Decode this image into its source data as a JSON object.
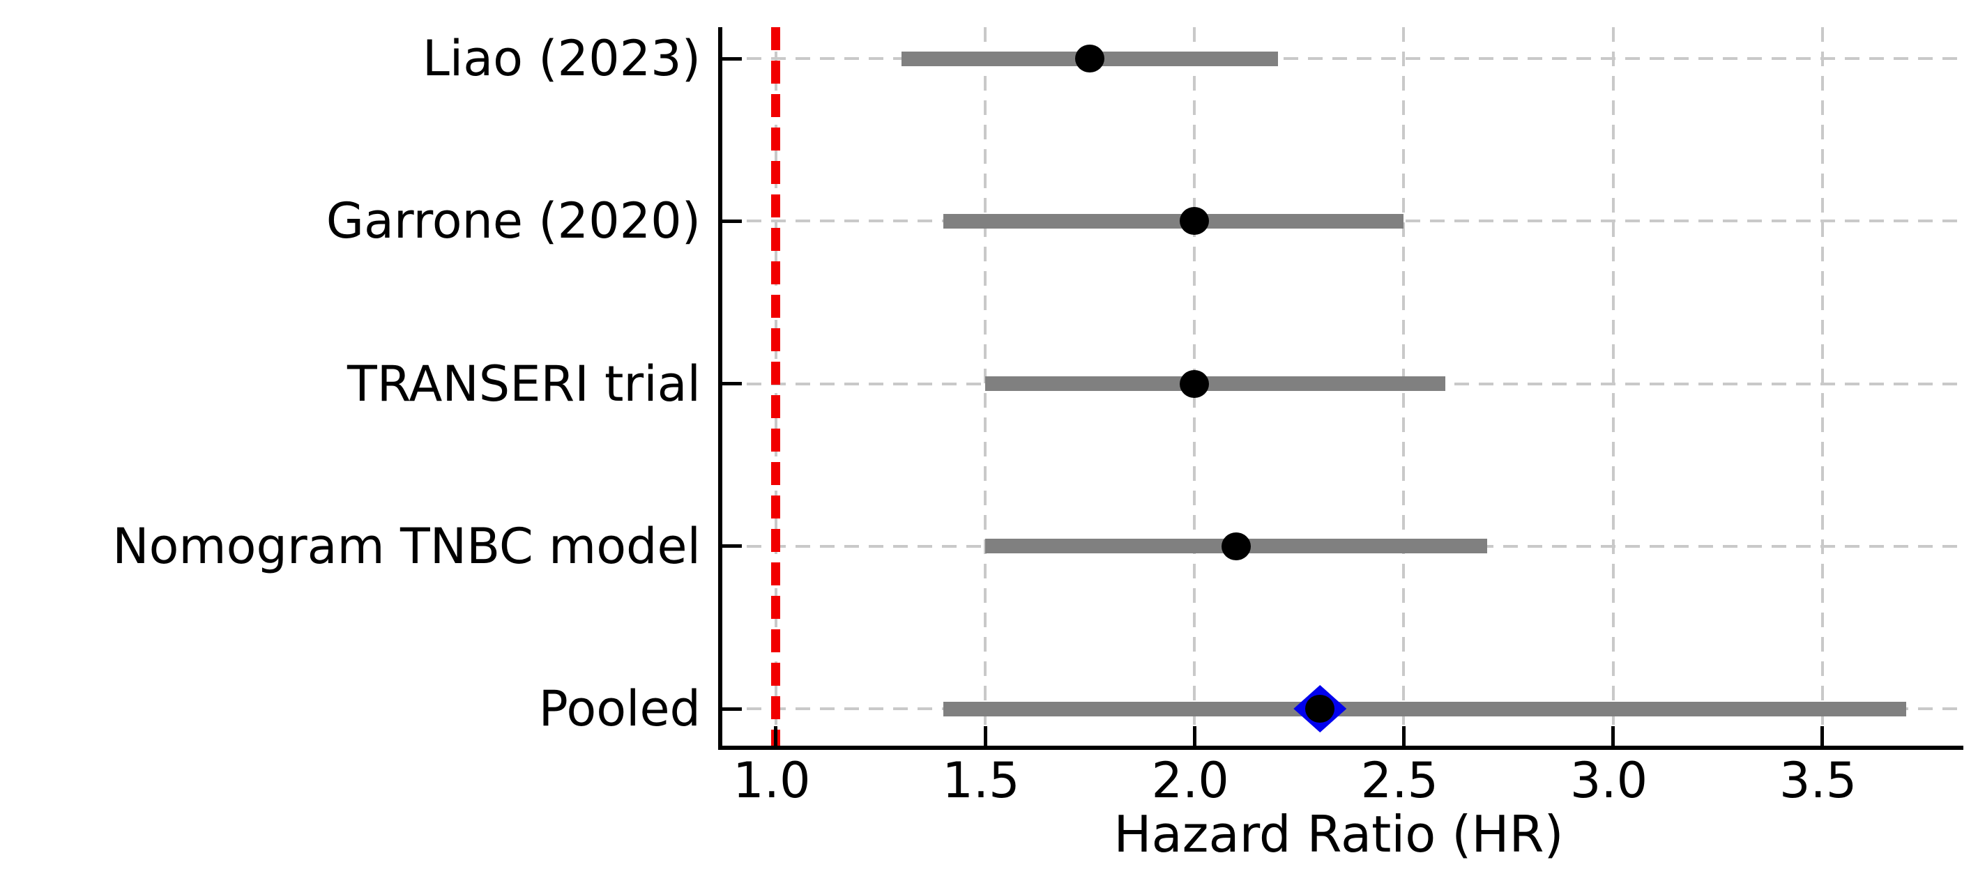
{
  "chart_data": {
    "type": "forest",
    "title": "",
    "xlabel": "Hazard Ratio (HR)",
    "x_ticks": [
      1.0,
      1.5,
      2.0,
      2.5,
      3.0,
      3.5
    ],
    "xlim": [
      0.872,
      3.837
    ],
    "grid": true,
    "reference_line": {
      "x": 1.0,
      "style": "dashed"
    },
    "studies": [
      {
        "label": "Liao (2023)",
        "hr": 1.75,
        "ci_low": 1.3,
        "ci_high": 2.2,
        "marker": "circle"
      },
      {
        "label": "Garrone (2020)",
        "hr": 2.0,
        "ci_low": 1.4,
        "ci_high": 2.5,
        "marker": "circle"
      },
      {
        "label": "TRANSERI trial",
        "hr": 2.0,
        "ci_low": 1.5,
        "ci_high": 2.6,
        "marker": "circle"
      },
      {
        "label": "Nomogram TNBC model",
        "hr": 2.1,
        "ci_low": 1.5,
        "ci_high": 2.7,
        "marker": "circle"
      },
      {
        "label": "Pooled",
        "hr": 2.3,
        "ci_low": 1.4,
        "ci_high": 3.7,
        "marker": "diamond"
      }
    ],
    "colors": {
      "ci_bar": "#808080",
      "point": "#000000",
      "pooled_diamond": "#0202ee",
      "pooled_center": "#000000",
      "reference": "#f10000",
      "grid": "#c9c9c9",
      "axis": "#000000",
      "background": "#ffffff"
    }
  }
}
